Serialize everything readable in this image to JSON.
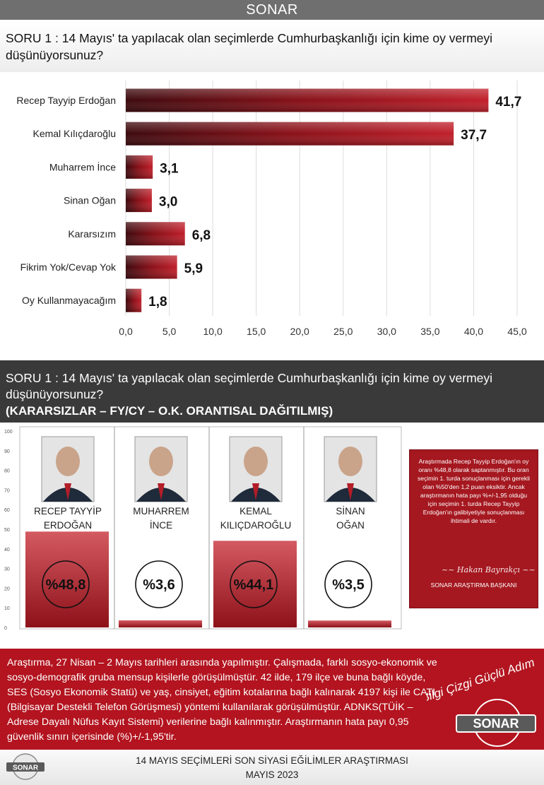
{
  "header": {
    "title": "SONAR"
  },
  "question1": {
    "text": "SORU 1 :  14 Mayıs' ta yapılacak olan seçimlerde Cumhurbaşkanlığı için kime oy vermeyi düşünüyorsunuz?"
  },
  "question2": {
    "text": "SORU 1 :  14 Mayıs' ta yapılacak olan seçimlerde Cumhurbaşkanlığı için kime oy vermeyi düşünüyorsunuz?",
    "subtitle": "(KARARSIZLAR – FY/CY – O.K. ORANTISAL DAĞITILMIŞ)"
  },
  "chart_data": [
    {
      "type": "bar",
      "orientation": "horizontal",
      "categories": [
        "Recep Tayyip Erdoğan",
        "Kemal Kılıçdaroğlu",
        "Muharrem İnce",
        "Sinan Oğan",
        "Kararsızım",
        "Fikrim Yok/Cevap Yok",
        "Oy Kullanmayacağım"
      ],
      "values": [
        41.7,
        37.7,
        3.1,
        3.0,
        6.8,
        5.9,
        1.8
      ],
      "value_labels": [
        "41,7",
        "37,7",
        "3,1",
        "3,0",
        "6,8",
        "5,9",
        "1,8"
      ],
      "xlim": [
        0,
        45
      ],
      "xticks": [
        "0,0",
        "5,0",
        "10,0",
        "15,0",
        "20,0",
        "25,0",
        "30,0",
        "35,0",
        "40,0",
        "45,0"
      ],
      "grid": true,
      "bar_color": "#a0141e"
    },
    {
      "type": "bar",
      "orientation": "vertical",
      "categories": [
        [
          "RECEP TAYYİP",
          "ERDOĞAN"
        ],
        [
          "MUHARREM",
          "İNCE"
        ],
        [
          "KEMAL",
          "KILIÇDAROĞLU"
        ],
        [
          "SİNAN",
          "OĞAN"
        ]
      ],
      "values": [
        48.8,
        3.6,
        44.1,
        3.5
      ],
      "value_labels": [
        "%48,8",
        "%3,6",
        "%44,1",
        "%3,5"
      ],
      "ylim": [
        0,
        100
      ],
      "yticks": [
        "0",
        "10",
        "20",
        "30",
        "40",
        "50",
        "60",
        "70",
        "80",
        "90",
        "100"
      ],
      "bar_color": "#b8232e"
    }
  ],
  "side_note": {
    "text": "Araştırmada Recep Tayyip Erdoğan'ın oy oranı %48,8 olarak saptanmıştır. Bu oran seçimin 1. turda sonuçlanması için gerekli olan %50'den 1,2 puan eksiktir. Ancak araştırmanın hata payı %+/-1,95 olduğu için seçimin 1. turda Recep Tayyip Erdoğan'ın galibiyetiyle sonuçlanması ihtimali de vardır.",
    "role": "SONAR ARAŞTIRMA BAŞKANI"
  },
  "footer": {
    "info": "Araştırma, 27 Nisan – 2 Mayıs tarihleri arasında yapılmıştır. Çalışmada, farklı sosyo-ekonomik ve sosyo-demografik gruba mensup kişilerle görüşülmüştür. 42 ilde, 179 ilçe ve buna bağlı köyde, SES (Sosyo Ekonomik Statü) ve yaş, cinsiyet, eğitim kotalarına bağlı kalınarak 4197 kişi ile CATI (Bilgisayar Destekli Telefon Görüşmesi) yöntemi kullanılarak görüşülmüştür. ADNKS(TÜİK – Adrese Dayalı Nüfus Kayıt Sistemi) verilerine bağlı kalınmıştır. Araştırmanın hata payı 0,95 güvenlik sınırı içerisinde (%)+/-1,95'tir.",
    "logo": "SONAR",
    "slogan": "Bilgi Çizgi Güçlü Adım",
    "report_title": "14 MAYIS SEÇİMLERİ SON SİYASİ EĞİLİMLER ARAŞTIRMASI",
    "report_date": "MAYIS 2023"
  }
}
